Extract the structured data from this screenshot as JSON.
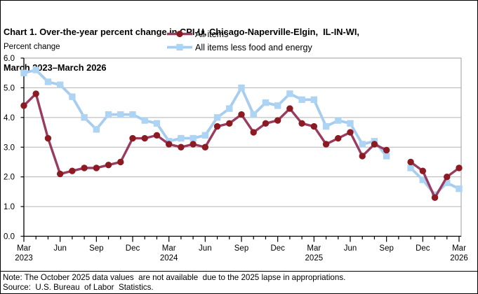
{
  "title": {
    "line1": "Chart 1. Over-the-year percent change in CPI-U, Chicago-Naperville-Elgin,  IL-IN-WI,",
    "line2": "March 2023–March 2026"
  },
  "note": "Note: The October 2025 data values  are not available  due to the 2025 lapse in appropriations.",
  "source": "Source:  U.S. Bureau  of Labor  Statistics.",
  "chart_data": {
    "type": "line",
    "title": "Over-the-year percent change in CPI-U, Chicago-Naperville-Elgin, IL-IN-WI, March 2023–March 2026",
    "ylabel": "Percent change",
    "ylim": [
      0,
      6
    ],
    "yticks": [
      0,
      1,
      2,
      3,
      4,
      5,
      6
    ],
    "ytick_labels": [
      "0.0",
      "1.0",
      "2.0",
      "3.0",
      "4.0",
      "5.0",
      "6.0"
    ],
    "grid": true,
    "grid_color": "#B3B3B3",
    "axis_color": "#000000",
    "plot_border_color": "#9C9C9C",
    "legend_position": "top-center",
    "missing_data": [
      "Oct 2025"
    ],
    "x": [
      "Mar 2023",
      "Apr 2023",
      "May 2023",
      "Jun 2023",
      "Jul 2023",
      "Aug 2023",
      "Sep 2023",
      "Oct 2023",
      "Nov 2023",
      "Dec 2023",
      "Jan 2024",
      "Feb 2024",
      "Mar 2024",
      "Apr 2024",
      "May 2024",
      "Jun 2024",
      "Jul 2024",
      "Aug 2024",
      "Sep 2024",
      "Oct 2024",
      "Nov 2024",
      "Dec 2024",
      "Jan 2025",
      "Feb 2025",
      "Mar 2025",
      "Apr 2025",
      "May 2025",
      "Jun 2025",
      "Jul 2025",
      "Aug 2025",
      "Sep 2025",
      "Oct 2025",
      "Nov 2025",
      "Dec 2025",
      "Jan 2026",
      "Feb 2026",
      "Mar 2026"
    ],
    "x_tick_labels": [
      {
        "month": "Mar",
        "year": "2023"
      },
      {
        "month": "Jun"
      },
      {
        "month": "Sep"
      },
      {
        "month": "Dec"
      },
      {
        "month": "Mar",
        "year": "2024"
      },
      {
        "month": "Jun"
      },
      {
        "month": "Sep"
      },
      {
        "month": "Dec"
      },
      {
        "month": "Mar",
        "year": "2025"
      },
      {
        "month": "Jun"
      },
      {
        "month": "Sep"
      },
      {
        "month": "Dec"
      },
      {
        "month": "Mar",
        "year": "2026"
      }
    ],
    "series": [
      {
        "name": "All items",
        "marker": "circle",
        "line_color": "#9B3A5F",
        "marker_color": "#8C1A23",
        "values": [
          4.4,
          4.8,
          3.3,
          2.1,
          2.2,
          2.3,
          2.3,
          2.4,
          2.5,
          3.3,
          3.3,
          3.4,
          3.1,
          3.0,
          3.1,
          3.0,
          3.7,
          3.8,
          4.1,
          3.5,
          3.8,
          3.9,
          4.3,
          3.8,
          3.7,
          3.1,
          3.3,
          3.5,
          2.7,
          3.1,
          2.9,
          null,
          2.5,
          2.2,
          1.3,
          2.0,
          2.3
        ]
      },
      {
        "name": "All items less food and energy",
        "marker": "square",
        "line_color": "#A6CDF0",
        "marker_color": "#AED4F4",
        "values": [
          5.5,
          5.6,
          5.2,
          5.1,
          4.7,
          4.0,
          3.6,
          4.1,
          4.1,
          4.1,
          3.9,
          3.8,
          3.2,
          3.3,
          3.3,
          3.4,
          4.0,
          4.3,
          5.0,
          4.1,
          4.5,
          4.4,
          4.8,
          4.6,
          4.6,
          3.7,
          3.9,
          3.8,
          3.1,
          3.2,
          2.7,
          null,
          2.3,
          1.9,
          1.4,
          1.8,
          1.6
        ]
      }
    ]
  }
}
